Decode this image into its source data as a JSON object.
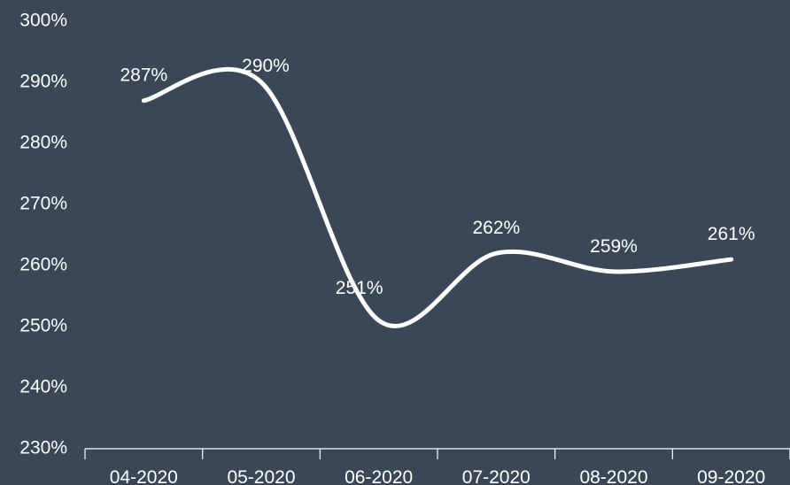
{
  "chart_data": {
    "type": "line",
    "categories": [
      "04-2020",
      "05-2020",
      "06-2020",
      "07-2020",
      "08-2020",
      "09-2020"
    ],
    "series": [
      {
        "values": [
          287,
          290,
          251,
          262,
          259,
          261
        ],
        "data_labels": [
          "287%",
          "290%",
          "251%",
          "262%",
          "259%",
          "261%"
        ]
      }
    ],
    "y_ticks": [
      "230%",
      "240%",
      "250%",
      "260%",
      "270%",
      "280%",
      "290%",
      "300%"
    ],
    "ylim": [
      230,
      300
    ],
    "y_unit": "%",
    "smooth": true,
    "grid": false,
    "title": "",
    "xlabel": "",
    "ylabel": "",
    "colors": {
      "background": "#3a4756",
      "line": "#ffffff",
      "text": "#ffffff"
    }
  }
}
